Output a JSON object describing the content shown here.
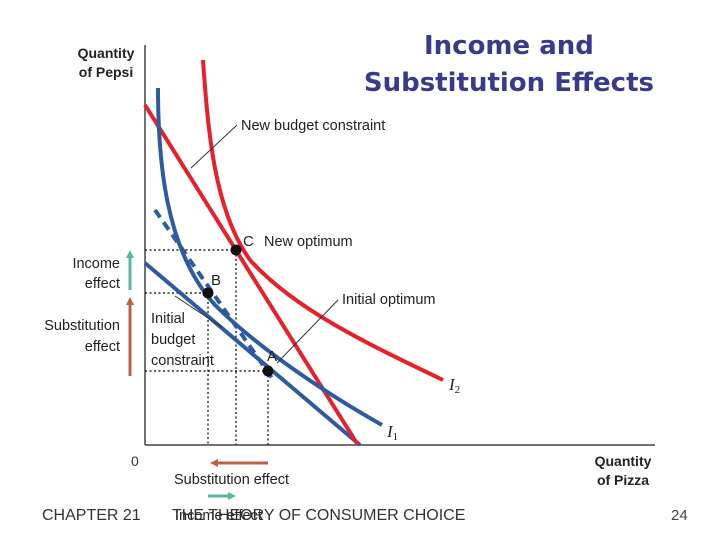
{
  "slide": {
    "title_line1": "Income and",
    "title_line2": "Substitution Effects",
    "footer_chapter": "CHAPTER 21",
    "footer_subject": "THE THEORY OF CONSUMER CHOICE",
    "page_number": "24"
  },
  "diagram": {
    "y_axis_label": [
      "Quantity",
      "of Pepsi"
    ],
    "x_axis_label": [
      "Quantity",
      "of Pizza"
    ],
    "origin_label": "0",
    "new_budget_label": "New budget constraint",
    "new_optimum_label": "New optimum",
    "initial_optimum_label": "Initial optimum",
    "initial_budget_label": [
      "Initial",
      "budget",
      "constraint"
    ],
    "point_a": "A",
    "point_b": "B",
    "point_c": "C",
    "curve_i1": "I",
    "curve_i1_sub": "1",
    "curve_i2": "I",
    "curve_i2_sub": "2",
    "income_effect_y": [
      "Income",
      "effect"
    ],
    "substitution_effect_y": [
      "Substitution",
      "effect"
    ],
    "substitution_effect_x": "Substitution effect",
    "income_effect_x": "Income effect"
  },
  "colors": {
    "red": "#e8202a",
    "blue": "#2d5aa0",
    "teal": "#5bb5a5",
    "brown": "#c0604a",
    "axis": "#444444",
    "title": "#3a3a8c"
  }
}
